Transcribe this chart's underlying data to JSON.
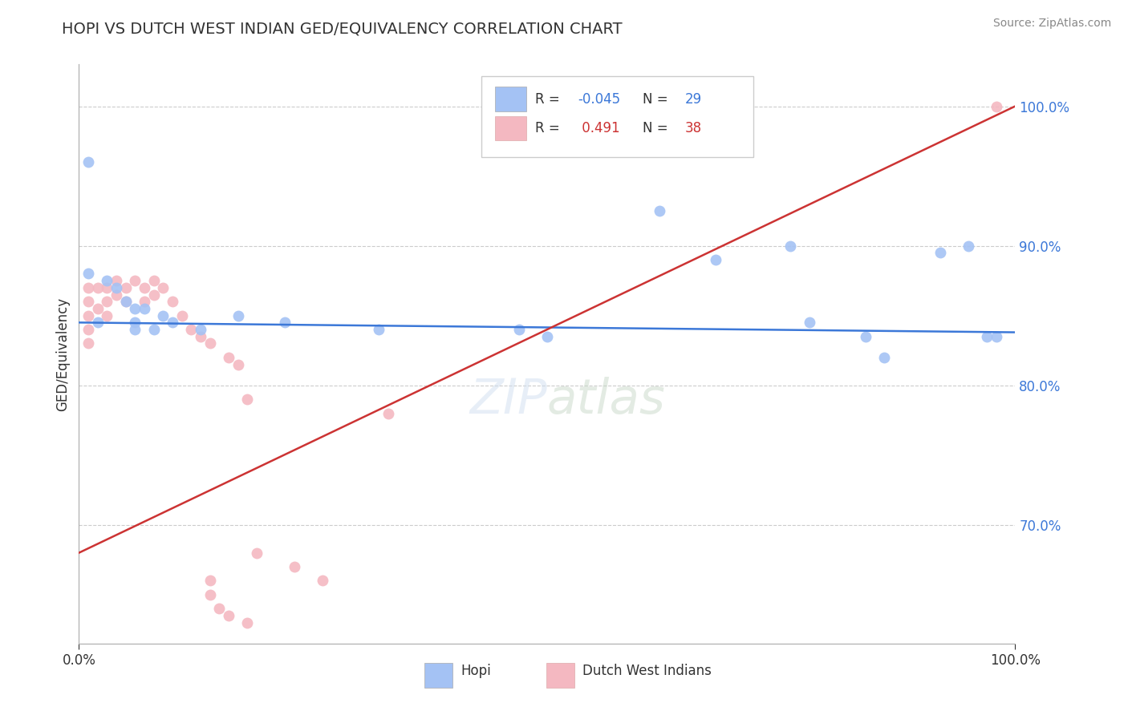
{
  "title": "HOPI VS DUTCH WEST INDIAN GED/EQUIVALENCY CORRELATION CHART",
  "source": "Source: ZipAtlas.com",
  "ylabel": "GED/Equivalency",
  "blue_color": "#a4c2f4",
  "pink_color": "#f4b8c1",
  "line_blue": "#3c78d8",
  "line_pink": "#cc3333",
  "bg_color": "#ffffff",
  "grid_color": "#cccccc",
  "hopi_x": [
    0.01,
    0.01,
    0.02,
    0.03,
    0.04,
    0.05,
    0.06,
    0.06,
    0.06,
    0.07,
    0.08,
    0.09,
    0.1,
    0.13,
    0.17,
    0.22,
    0.32,
    0.47,
    0.5,
    0.62,
    0.68,
    0.76,
    0.78,
    0.84,
    0.86,
    0.92,
    0.95,
    0.97,
    0.98
  ],
  "hopi_y": [
    0.96,
    0.88,
    0.845,
    0.875,
    0.87,
    0.86,
    0.855,
    0.845,
    0.84,
    0.855,
    0.84,
    0.85,
    0.845,
    0.84,
    0.85,
    0.845,
    0.84,
    0.84,
    0.835,
    0.925,
    0.89,
    0.9,
    0.845,
    0.835,
    0.82,
    0.895,
    0.9,
    0.835,
    0.835
  ],
  "dutch_x": [
    0.01,
    0.01,
    0.01,
    0.01,
    0.01,
    0.02,
    0.02,
    0.03,
    0.03,
    0.03,
    0.04,
    0.04,
    0.05,
    0.05,
    0.06,
    0.07,
    0.07,
    0.08,
    0.08,
    0.09,
    0.1,
    0.11,
    0.12,
    0.13,
    0.14,
    0.16,
    0.17,
    0.18,
    0.19,
    0.23,
    0.26,
    0.33,
    0.14,
    0.14,
    0.15,
    0.16,
    0.18,
    0.98
  ],
  "dutch_y": [
    0.87,
    0.86,
    0.85,
    0.84,
    0.83,
    0.87,
    0.855,
    0.87,
    0.86,
    0.85,
    0.875,
    0.865,
    0.87,
    0.86,
    0.875,
    0.87,
    0.86,
    0.875,
    0.865,
    0.87,
    0.86,
    0.85,
    0.84,
    0.835,
    0.83,
    0.82,
    0.815,
    0.79,
    0.68,
    0.67,
    0.66,
    0.78,
    0.66,
    0.65,
    0.64,
    0.635,
    0.63,
    1.0
  ],
  "xmin": 0.0,
  "xmax": 1.0,
  "ymin": 0.615,
  "ymax": 1.03,
  "ytick_vals": [
    0.7,
    0.8,
    0.9,
    1.0
  ],
  "ytick_labels": [
    "70.0%",
    "80.0%",
    "90.0%",
    "100.0%"
  ],
  "blue_line_x0": 0.0,
  "blue_line_x1": 1.0,
  "blue_line_y0": 0.845,
  "blue_line_y1": 0.838,
  "pink_line_x0": 0.0,
  "pink_line_x1": 1.0,
  "pink_line_y0": 0.68,
  "pink_line_y1": 1.0
}
